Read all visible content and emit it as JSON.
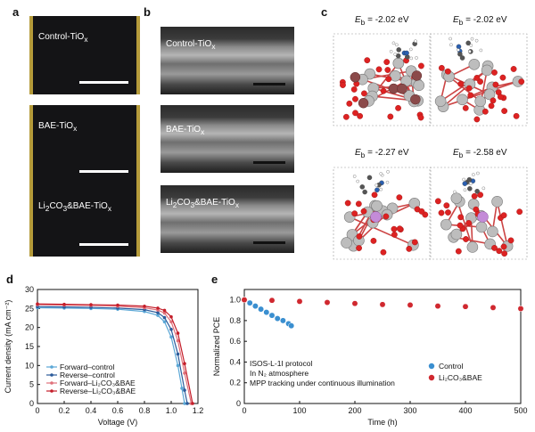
{
  "panels": {
    "a": {
      "label": "a",
      "images": [
        {
          "caption": "Control-TiO",
          "sub": "x"
        },
        {
          "caption": "BAE-TiO",
          "sub": "x"
        },
        {
          "caption_pre": "Li",
          "sub1": "2",
          "caption_mid": "CO",
          "sub2": "3",
          "caption_post": "&BAE-TiO",
          "sub3": "x"
        }
      ]
    },
    "b": {
      "label": "b",
      "images": [
        {
          "caption": "Control-TiO",
          "sub": "x"
        },
        {
          "caption": "BAE-TiO",
          "sub": "x"
        },
        {
          "caption_pre": "Li",
          "sub1": "2",
          "caption_mid": "CO",
          "sub2": "3",
          "caption_post": "&BAE-TiO",
          "sub3": "x"
        }
      ]
    },
    "c": {
      "label": "c",
      "eb_symbol": "E",
      "eb_sub": "b",
      "energies": [
        "= -2.02 eV",
        "= -2.02 eV",
        "= -2.27 eV",
        "= -2.58 eV"
      ]
    },
    "d": {
      "label": "d"
    },
    "e": {
      "label": "e"
    }
  },
  "chart_data": [
    {
      "type": "line",
      "panel": "d",
      "xlabel": "Voltage (V)",
      "ylabel": "Current density (mA cm⁻²)",
      "xlim": [
        0,
        1.2
      ],
      "ylim": [
        0,
        30
      ],
      "xticks": [
        "0",
        "0.2",
        "0.4",
        "0.6",
        "0.8",
        "1.0",
        "1.2"
      ],
      "yticks": [
        "0",
        "5",
        "10",
        "15",
        "20",
        "25",
        "30"
      ],
      "legend_position": "bottom-left",
      "legend": [
        "Forward–control",
        "Reverse–control",
        "Forward–Li₂CO₃&BAE",
        "Reverse–Li₂CO₃&BAE"
      ],
      "colors": {
        "forward_control": "#5aa7d6",
        "reverse_control": "#2a5a9a",
        "forward_li": "#e0707a",
        "reverse_li": "#c41e2a"
      },
      "series": [
        {
          "name": "Forward–control",
          "x": [
            0,
            0.2,
            0.4,
            0.6,
            0.8,
            0.9,
            0.95,
            1.0,
            1.05,
            1.08,
            1.1
          ],
          "y": [
            25.2,
            25.1,
            25.0,
            24.8,
            24.2,
            23.2,
            21.5,
            17.5,
            10.0,
            4.0,
            0
          ]
        },
        {
          "name": "Reverse–control",
          "x": [
            0,
            0.2,
            0.4,
            0.6,
            0.8,
            0.9,
            0.95,
            1.0,
            1.05,
            1.1,
            1.12
          ],
          "y": [
            25.5,
            25.4,
            25.3,
            25.1,
            24.7,
            23.9,
            22.6,
            19.5,
            13.0,
            3.5,
            0
          ]
        },
        {
          "name": "Forward–Li₂CO₃&BAE",
          "x": [
            0,
            0.2,
            0.4,
            0.6,
            0.8,
            0.9,
            0.95,
            1.0,
            1.05,
            1.1,
            1.15
          ],
          "y": [
            26.0,
            25.9,
            25.8,
            25.6,
            25.2,
            24.6,
            23.8,
            21.5,
            16.5,
            8.0,
            0
          ]
        },
        {
          "name": "Reverse–Li₂CO₃&BAE",
          "x": [
            0,
            0.2,
            0.4,
            0.6,
            0.8,
            0.9,
            0.95,
            1.0,
            1.05,
            1.1,
            1.16
          ],
          "y": [
            26.2,
            26.1,
            26.0,
            25.9,
            25.6,
            25.1,
            24.5,
            22.8,
            18.5,
            10.5,
            0
          ]
        }
      ]
    },
    {
      "type": "scatter",
      "panel": "e",
      "xlabel": "Time (h)",
      "ylabel": "Normalized PCE",
      "xlim": [
        0,
        500
      ],
      "ylim": [
        0,
        1.1
      ],
      "xticks": [
        "0",
        "100",
        "200",
        "300",
        "400",
        "500"
      ],
      "yticks": [
        "0",
        "0.2",
        "0.4",
        "0.6",
        "0.8",
        "1.0"
      ],
      "legend_position": "bottom-right",
      "annotation": [
        "ISOS-L-1I protocol",
        "In N₂ atmosphere",
        "MPP tracking under continuous illumination"
      ],
      "colors": {
        "control": "#3a8fd0",
        "li": "#d0282f"
      },
      "series": [
        {
          "name": "Control",
          "x": [
            0,
            10,
            20,
            30,
            40,
            50,
            60,
            70,
            80,
            85
          ],
          "y": [
            1.0,
            0.97,
            0.94,
            0.91,
            0.88,
            0.85,
            0.82,
            0.8,
            0.77,
            0.75
          ]
        },
        {
          "name": "Li₂CO₃&BAE",
          "x": [
            0,
            50,
            100,
            150,
            200,
            250,
            300,
            350,
            400,
            450,
            500
          ],
          "y": [
            1.0,
            0.995,
            0.985,
            0.975,
            0.965,
            0.955,
            0.95,
            0.94,
            0.935,
            0.925,
            0.915
          ]
        }
      ]
    }
  ]
}
